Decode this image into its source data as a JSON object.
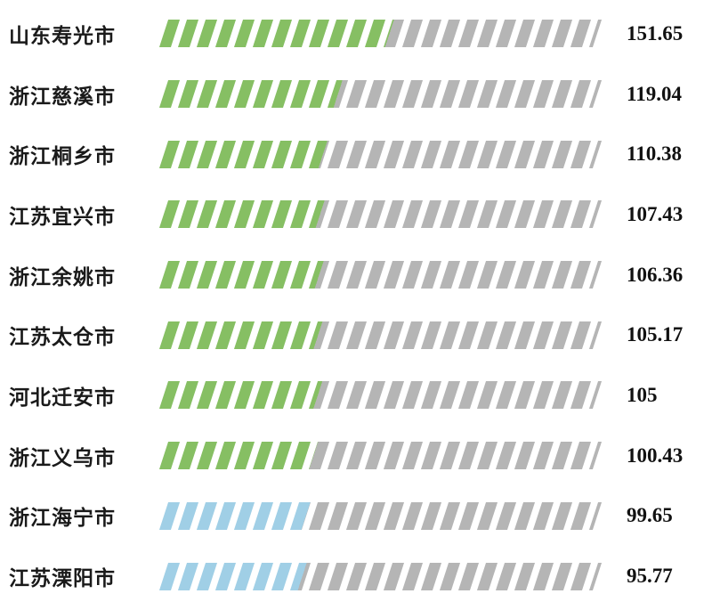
{
  "chart_data": {
    "type": "bar",
    "orientation": "horizontal",
    "style": "segmented-stripes",
    "categories": [
      "山东寿光市",
      "浙江慈溪市",
      "浙江桐乡市",
      "江苏宜兴市",
      "浙江余姚市",
      "江苏太仓市",
      "河北迁安市",
      "浙江义乌市",
      "浙江海宁市",
      "江苏溧阳市"
    ],
    "values": [
      151.65,
      119.04,
      110.38,
      107.43,
      106.36,
      105.17,
      105,
      100.43,
      99.65,
      95.77
    ],
    "value_labels": [
      "151.65",
      "119.04",
      "110.38",
      "107.43",
      "106.36",
      "105.17",
      "105",
      "100.43",
      "99.65",
      "95.77"
    ],
    "bar_colors": [
      "#86bf63",
      "#86bf63",
      "#86bf63",
      "#86bf63",
      "#86bf63",
      "#86bf63",
      "#86bf63",
      "#86bf63",
      "#a0cfe6",
      "#a0cfe6"
    ],
    "track_color": "#b5b5b5",
    "axis_max": 287.5,
    "segments_total": 23,
    "title": "",
    "xlabel": "",
    "ylabel": "",
    "grid": false,
    "legend": false
  }
}
